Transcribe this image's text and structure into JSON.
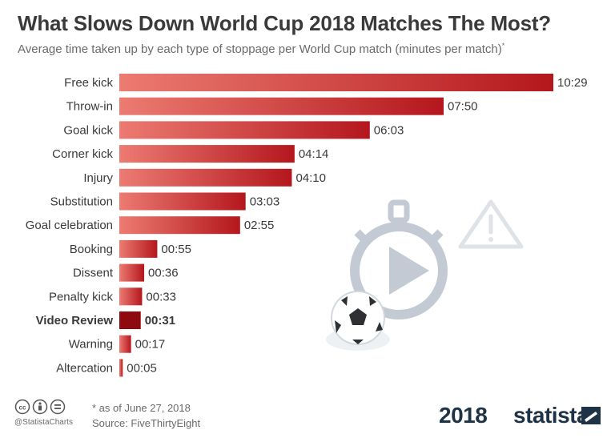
{
  "header": {
    "title": "What Slows Down World Cup 2018 Matches The Most?",
    "subtitle": "Average time taken up by each type of stoppage per World Cup match (minutes per match)",
    "subtitle_mark": "*"
  },
  "chart_data": {
    "type": "bar",
    "orientation": "horizontal",
    "title": "What Slows Down World Cup 2018 Matches The Most?",
    "xlabel": "",
    "ylabel": "",
    "unit": "minutes per match",
    "categories": [
      "Free kick",
      "Throw-in",
      "Goal kick",
      "Corner kick",
      "Injury",
      "Substitution",
      "Goal celebration",
      "Booking",
      "Dissent",
      "Penalty kick",
      "Video Review",
      "Warning",
      "Altercation"
    ],
    "value_labels": [
      "10:29",
      "07:50",
      "06:03",
      "04:14",
      "04:10",
      "03:03",
      "02:55",
      "00:55",
      "00:36",
      "00:33",
      "00:31",
      "00:17",
      "00:05"
    ],
    "values": [
      10.483,
      7.833,
      6.05,
      4.233,
      4.167,
      3.05,
      2.917,
      0.917,
      0.6,
      0.55,
      0.517,
      0.283,
      0.083
    ],
    "highlight": "Video Review",
    "xlim": [
      0,
      10.483
    ],
    "colors": {
      "bar_light": "#ec7b72",
      "bar_dark": "#b4171d",
      "highlight": "#8e0a0f"
    }
  },
  "footer": {
    "note": "* as of June 27, 2018",
    "source": "Source: FiveThirtyEight",
    "handle": "@StatistaCharts",
    "year_logo": "2018",
    "brand": "statista"
  },
  "icons": {
    "license": [
      "cc-icon",
      "attribution-icon",
      "no-derivatives-icon"
    ],
    "illustration": [
      "stopwatch-icon",
      "warning-icon",
      "soccer-ball-icon"
    ]
  }
}
